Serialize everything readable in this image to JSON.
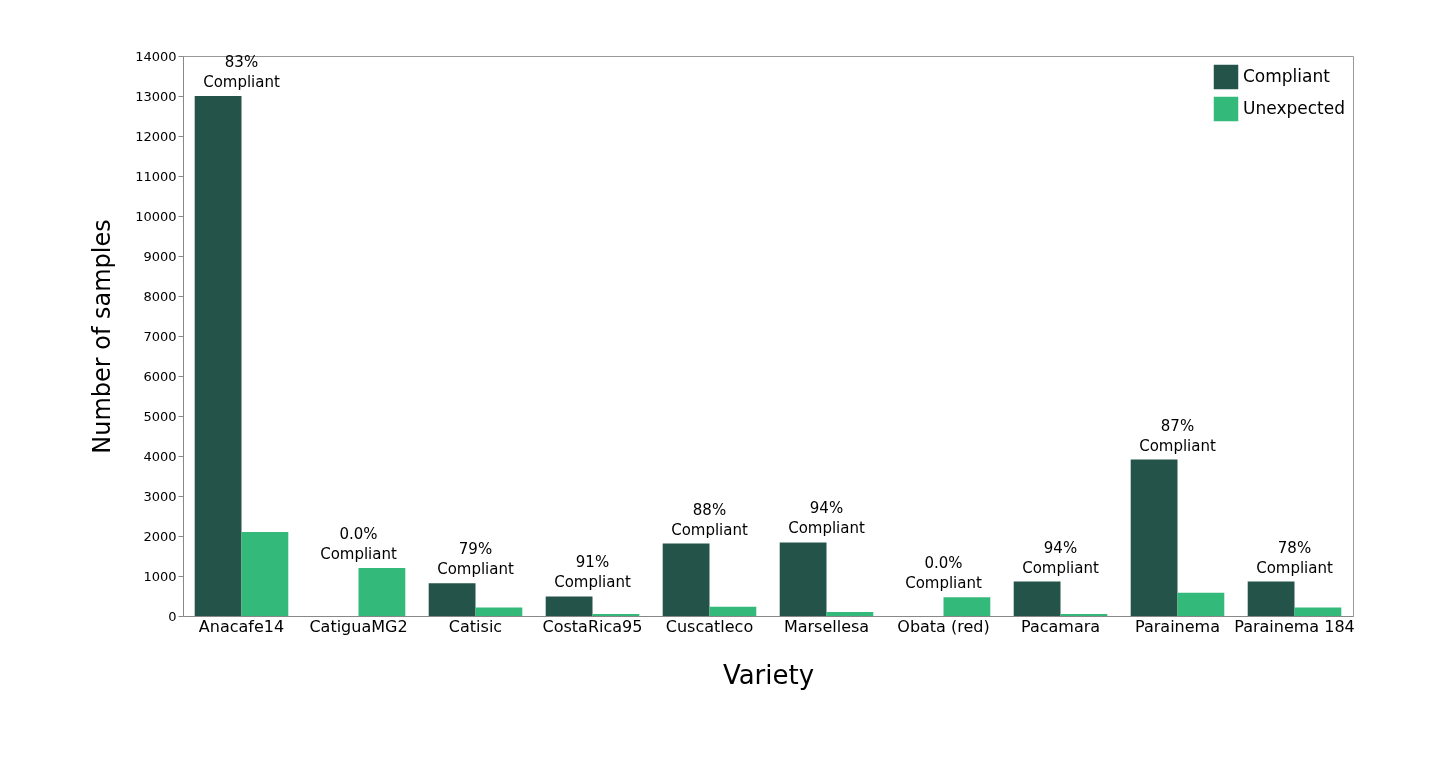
{
  "chart_data": {
    "type": "bar",
    "xlabel": "Variety",
    "ylabel": "Number of samples",
    "categories": [
      "Anacafe14",
      "CatiguaMG2",
      "Catisic",
      "CostaRica95",
      "Cuscatleco",
      "Marsellesa",
      "Obata (red)",
      "Pacamara",
      "Parainema",
      "Parainema 184"
    ],
    "series": [
      {
        "name": "Compliant",
        "color": "#24534a",
        "values": [
          13000,
          0,
          820,
          490,
          1810,
          1840,
          0,
          860,
          3910,
          860
        ]
      },
      {
        "name": "Unexpected",
        "color": "#33b97a",
        "values": [
          2100,
          1200,
          210,
          50,
          230,
          100,
          470,
          50,
          580,
          210
        ]
      }
    ],
    "ylim": [
      0,
      14000
    ],
    "yticks": [
      0,
      1000,
      2000,
      3000,
      4000,
      5000,
      6000,
      7000,
      8000,
      9000,
      10000,
      11000,
      12000,
      13000,
      14000
    ],
    "legend": "top right",
    "grid": false,
    "annotations": [
      {
        "text": "83% Compliant",
        "x": "Anacafe14",
        "y": 13000
      },
      {
        "text": "0.0% Compliant",
        "x": "CatiguaMG2",
        "y": 1200
      },
      {
        "text": "79% Compliant",
        "x": "Catisic",
        "y": 820
      },
      {
        "text": "91% Compliant",
        "x": "CostaRica95",
        "y": 490
      },
      {
        "text": "88% Compliant",
        "x": "Cuscatleco",
        "y": 1810
      },
      {
        "text": "94% Compliant",
        "x": "Marsellesa",
        "y": 1840
      },
      {
        "text": "0.0% Compliant",
        "x": "Obata (red)",
        "y": 470
      },
      {
        "text": "94% Compliant",
        "x": "Pacamara",
        "y": 860
      },
      {
        "text": "87% Compliant",
        "x": "Parainema",
        "y": 3910
      },
      {
        "text": "78% Compliant",
        "x": "Parainema 184",
        "y": 860
      }
    ]
  }
}
